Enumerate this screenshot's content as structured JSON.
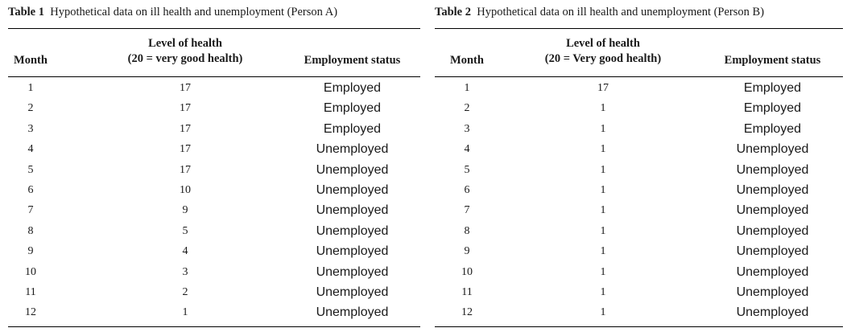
{
  "tables": [
    {
      "caption_label": "Table 1",
      "caption_text": "Hypothetical data on ill health and unemployment (Person A)",
      "headers": {
        "month": "Month",
        "health_line1": "Level of health",
        "health_line2": "(20 = very good health)",
        "status": "Employment status"
      },
      "rows": [
        {
          "month": "1",
          "health": "17",
          "status": "Employed"
        },
        {
          "month": "2",
          "health": "17",
          "status": "Employed"
        },
        {
          "month": "3",
          "health": "17",
          "status": "Employed"
        },
        {
          "month": "4",
          "health": "17",
          "status": "Unemployed"
        },
        {
          "month": "5",
          "health": "17",
          "status": "Unemployed"
        },
        {
          "month": "6",
          "health": "10",
          "status": "Unemployed"
        },
        {
          "month": "7",
          "health": "9",
          "status": "Unemployed"
        },
        {
          "month": "8",
          "health": "5",
          "status": "Unemployed"
        },
        {
          "month": "9",
          "health": "4",
          "status": "Unemployed"
        },
        {
          "month": "10",
          "health": "3",
          "status": "Unemployed"
        },
        {
          "month": "11",
          "health": "2",
          "status": "Unemployed"
        },
        {
          "month": "12",
          "health": "1",
          "status": "Unemployed"
        }
      ]
    },
    {
      "caption_label": "Table 2",
      "caption_text": "Hypothetical data on ill health and unemployment (Person B)",
      "headers": {
        "month": "Month",
        "health_line1": "Level of health",
        "health_line2": "(20 = Very good health)",
        "status": "Employment status"
      },
      "rows": [
        {
          "month": "1",
          "health": "17",
          "status": "Employed"
        },
        {
          "month": "2",
          "health": "1",
          "status": "Employed"
        },
        {
          "month": "3",
          "health": "1",
          "status": "Employed"
        },
        {
          "month": "4",
          "health": "1",
          "status": "Unemployed"
        },
        {
          "month": "5",
          "health": "1",
          "status": "Unemployed"
        },
        {
          "month": "6",
          "health": "1",
          "status": "Unemployed"
        },
        {
          "month": "7",
          "health": "1",
          "status": "Unemployed"
        },
        {
          "month": "8",
          "health": "1",
          "status": "Unemployed"
        },
        {
          "month": "9",
          "health": "1",
          "status": "Unemployed"
        },
        {
          "month": "10",
          "health": "1",
          "status": "Unemployed"
        },
        {
          "month": "11",
          "health": "1",
          "status": "Unemployed"
        },
        {
          "month": "12",
          "health": "1",
          "status": "Unemployed"
        }
      ]
    }
  ]
}
